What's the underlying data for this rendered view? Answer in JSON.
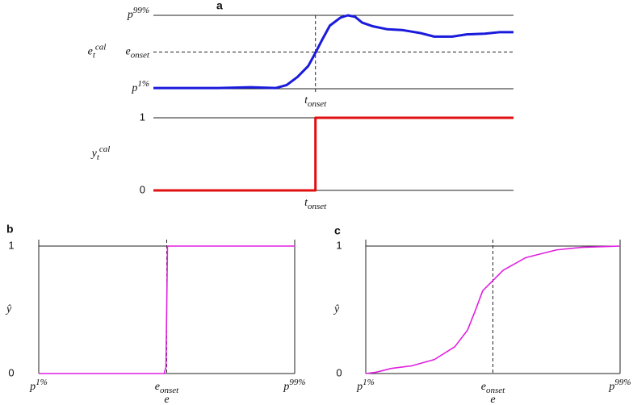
{
  "chart_data": [
    {
      "type": "line",
      "title": "a",
      "ylabel": {
        "label": "e",
        "sub": "t",
        "sup": "cal"
      },
      "x": [
        0,
        0.09,
        0.18,
        0.27,
        0.34,
        0.37,
        0.4,
        0.43,
        0.45,
        0.47,
        0.49,
        0.52,
        0.54,
        0.56,
        0.58,
        0.61,
        0.65,
        0.69,
        0.74,
        0.78,
        0.83,
        0.87,
        0.92,
        0.96,
        1.0
      ],
      "values": [
        0.01,
        0.01,
        0.01,
        0.02,
        0.01,
        0.05,
        0.16,
        0.31,
        0.49,
        0.68,
        0.86,
        0.97,
        1.0,
        0.98,
        0.9,
        0.85,
        0.81,
        0.8,
        0.76,
        0.71,
        0.71,
        0.74,
        0.75,
        0.77,
        0.77
      ],
      "color": "#1a1adc",
      "xlim": [
        0,
        1
      ],
      "ylim": [
        0,
        1
      ],
      "xticks": [
        {
          "value": 0.45,
          "label": "t",
          "sub": "onset",
          "style": "dashed"
        }
      ],
      "yticks": [
        {
          "value": 0,
          "label": "p",
          "sup": "1%"
        },
        {
          "value": 0.5,
          "label": "e",
          "sub": "onset",
          "style": "dashed"
        },
        {
          "value": 1,
          "label": "p",
          "sup": "99%"
        }
      ]
    },
    {
      "type": "line",
      "ylabel": {
        "label": "y",
        "sub": "t",
        "sup": "cal"
      },
      "x": [
        0,
        0.45,
        0.45,
        1
      ],
      "values": [
        0,
        0,
        1,
        1
      ],
      "color": "#e01010",
      "xlim": [
        0,
        1
      ],
      "ylim": [
        0,
        1
      ],
      "xticks": [
        {
          "value": 0.45,
          "label": "t",
          "sub": "onset"
        }
      ],
      "yticks": [
        0,
        1
      ]
    },
    {
      "type": "line",
      "title": "b",
      "ylabel": {
        "label": "ŷ"
      },
      "xlabel": "e",
      "x": [
        0,
        0.49,
        0.497,
        0.503,
        1
      ],
      "values": [
        0,
        0,
        0.05,
        1,
        1
      ],
      "color": "#e020e0",
      "xlim": [
        0,
        1
      ],
      "ylim": [
        0,
        1
      ],
      "xticks": [
        {
          "value": 0,
          "label": "p",
          "sup": "1%"
        },
        {
          "value": 0.5,
          "label": "e",
          "sub": "onset",
          "style": "dashed"
        },
        {
          "value": 1,
          "label": "p",
          "sup": "99%"
        }
      ],
      "yticks": [
        0,
        1
      ]
    },
    {
      "type": "line",
      "title": "c",
      "ylabel": {
        "label": "ŷ"
      },
      "xlabel": "e",
      "x": [
        0,
        0.04,
        0.1,
        0.18,
        0.27,
        0.35,
        0.4,
        0.43,
        0.46,
        0.5,
        0.54,
        0.63,
        0.75,
        0.85,
        1.0
      ],
      "values": [
        0,
        0.01,
        0.04,
        0.06,
        0.11,
        0.21,
        0.34,
        0.49,
        0.65,
        0.73,
        0.81,
        0.91,
        0.97,
        0.99,
        1.0
      ],
      "color": "#e020e0",
      "xlim": [
        0,
        1
      ],
      "ylim": [
        0,
        1
      ],
      "xticks": [
        {
          "value": 0,
          "label": "p",
          "sup": "1%"
        },
        {
          "value": 0.5,
          "label": "e",
          "sub": "onset",
          "style": "dashed"
        },
        {
          "value": 1,
          "label": "p",
          "sup": "99%"
        }
      ],
      "yticks": [
        0,
        1
      ]
    }
  ]
}
